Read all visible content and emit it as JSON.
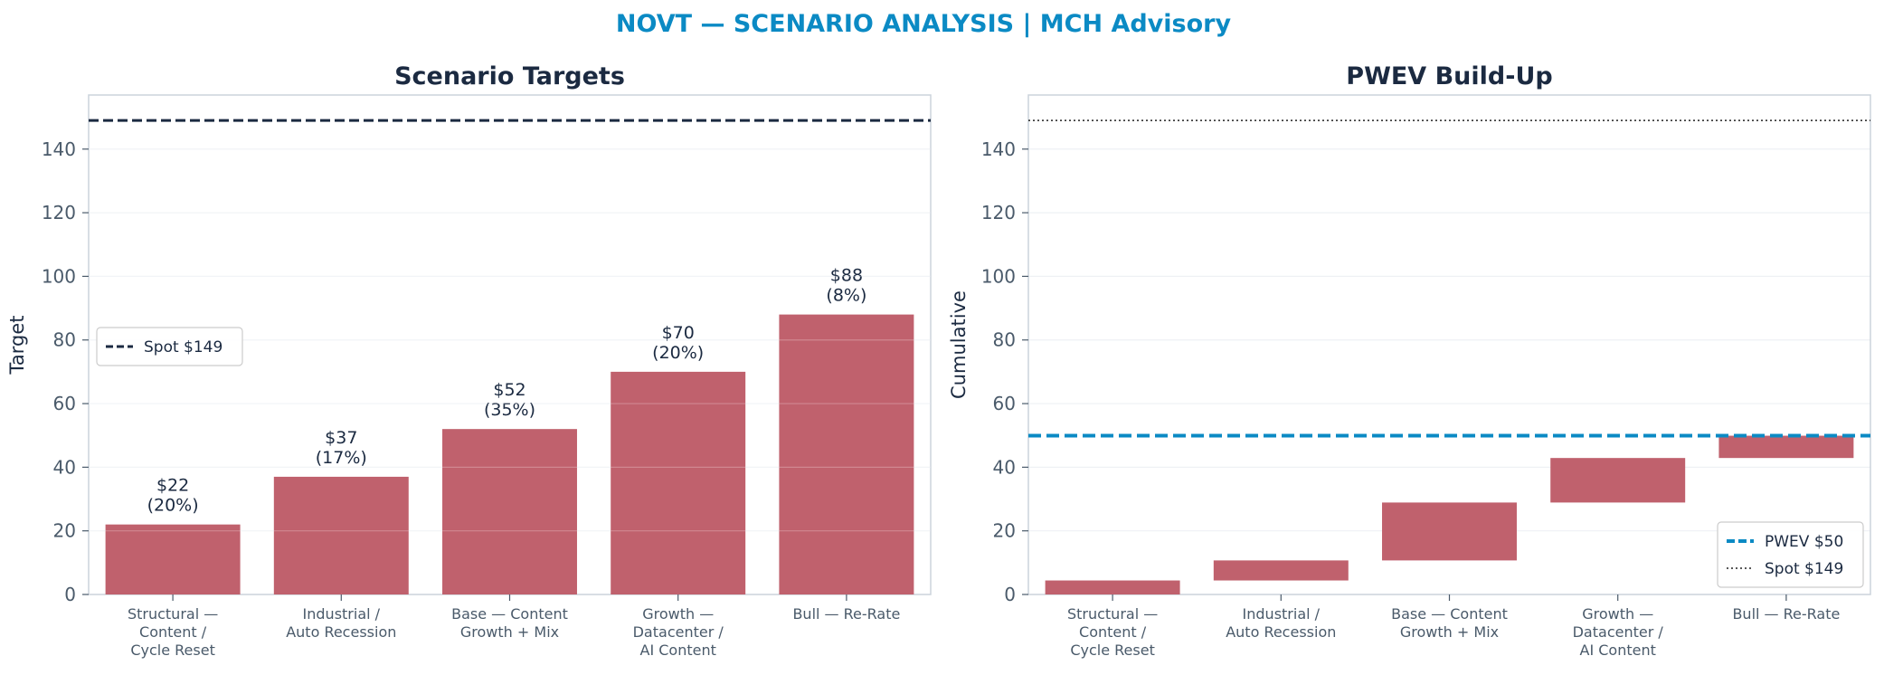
{
  "suptitle": "NOVT — SCENARIO ANALYSIS | MCH Advisory",
  "colors": {
    "title_accent": "#0b8ac4",
    "bar": "#c0616d",
    "spot_line": "#1b2a41",
    "pwev_line": "#0b8ac4",
    "axis_text": "#4a5a6a",
    "dark_text": "#1b2a41",
    "frame": "#ccd3dc",
    "grid": "#eef1f4"
  },
  "chart_data": [
    {
      "type": "bar",
      "title": "Scenario Targets",
      "xlabel": "",
      "ylabel": "Target",
      "ylim": [
        0,
        157
      ],
      "yticks": [
        0,
        20,
        40,
        60,
        80,
        100,
        120,
        140
      ],
      "grid": true,
      "categories": [
        "Structural —\nContent /\nCycle Reset",
        "Industrial /\nAuto Recession",
        "Base — Content\nGrowth + Mix",
        "Growth —\nDatacenter /\nAI Content",
        "Bull — Re-Rate"
      ],
      "values": [
        22,
        37,
        52,
        70,
        88
      ],
      "data_labels": [
        "$22\n(20%)",
        "$37\n(17%)",
        "$52\n(35%)",
        "$70\n(20%)",
        "$88\n(8%)"
      ],
      "reference_lines": [
        {
          "label": "Spot $149",
          "y": 149,
          "style": "dashed"
        }
      ],
      "legend_position": "center-left"
    },
    {
      "type": "waterfall",
      "title": "PWEV Build-Up",
      "xlabel": "",
      "ylabel": "Cumulative",
      "ylim": [
        0,
        157
      ],
      "yticks": [
        0,
        20,
        40,
        60,
        80,
        100,
        120,
        140
      ],
      "grid": true,
      "categories": [
        "Structural —\nContent /\nCycle Reset",
        "Industrial /\nAuto Recession",
        "Base — Content\nGrowth + Mix",
        "Growth —\nDatacenter /\nAI Content",
        "Bull — Re-Rate"
      ],
      "segments": [
        {
          "start": 0,
          "end": 4.4
        },
        {
          "start": 4.4,
          "end": 10.7
        },
        {
          "start": 10.7,
          "end": 28.9
        },
        {
          "start": 28.9,
          "end": 42.9
        },
        {
          "start": 42.9,
          "end": 49.9
        }
      ],
      "reference_lines": [
        {
          "label": "PWEV $50",
          "y": 49.9,
          "style": "dashed-thick"
        },
        {
          "label": "Spot $149",
          "y": 149,
          "style": "dotted"
        }
      ],
      "legend_position": "lower-right"
    }
  ]
}
